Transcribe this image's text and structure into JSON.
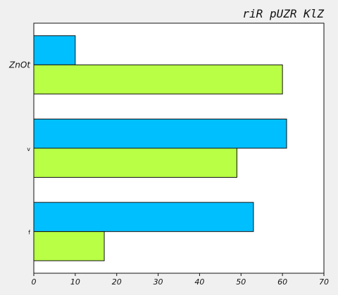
{
  "chart_data": {
    "type": "bar",
    "orientation": "horizontal",
    "title": "riR  pUZR KlZ",
    "xlabel": "",
    "ylabel": "",
    "categories": [
      "ZnOt",
      "v",
      "f"
    ],
    "series": [
      {
        "values": [
          10,
          61,
          53
        ],
        "color": "#00bfff"
      },
      {
        "values": [
          60,
          49,
          17
        ],
        "color": "#b8ff45"
      }
    ],
    "xlim": [
      0,
      70
    ],
    "xticks": [
      0,
      10,
      20,
      30,
      40,
      50,
      60,
      70
    ],
    "grid": false,
    "legend": "none"
  }
}
